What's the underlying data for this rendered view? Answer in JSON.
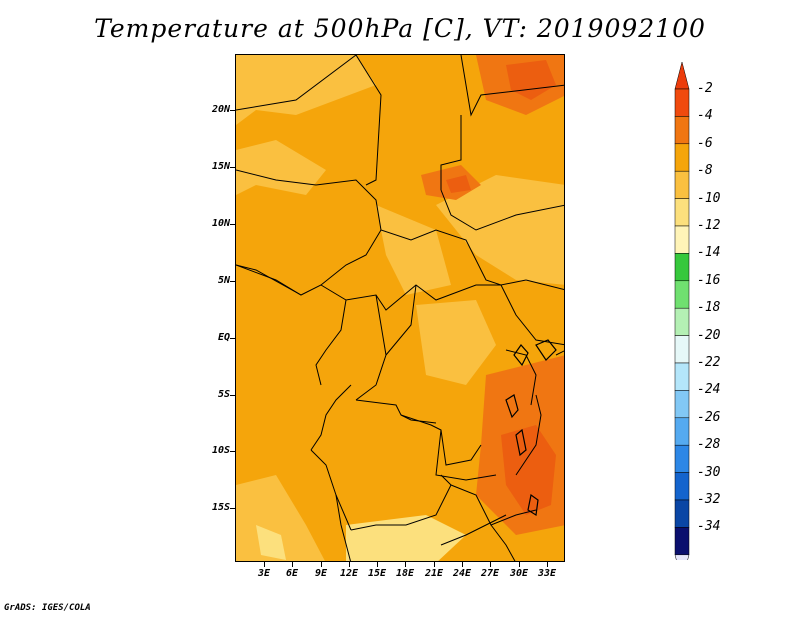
{
  "title": "Temperature at 500hPa [C], VT: 2019092100",
  "credit": "GrADS: IGES/COLA",
  "map": {
    "variable": "Temperature",
    "level": "500hPa",
    "units": "C",
    "valid_time": "2019092100",
    "lat_labels": [
      "20N",
      "15N",
      "10N",
      "5N",
      "EQ",
      "5S",
      "10S",
      "15S"
    ],
    "lon_labels": [
      "3E",
      "6E",
      "9E",
      "12E",
      "15E",
      "18E",
      "21E",
      "24E",
      "27E",
      "30E",
      "33E"
    ],
    "base_color": "#f5a50b",
    "region_colors": {
      "warm_light": "#ffc845",
      "warm_dark": "#ee7d0c",
      "hot": "#ec5e10"
    }
  },
  "colorbar": {
    "labels": [
      "-2",
      "-4",
      "-6",
      "-8",
      "-10",
      "-12",
      "-14",
      "-16",
      "-18",
      "-20",
      "-22",
      "-24",
      "-26",
      "-28",
      "-30",
      "-32",
      "-34"
    ],
    "colors": [
      "#f04a0e",
      "#f07612",
      "#f5a50b",
      "#fac040",
      "#fce07d",
      "#fff4b8",
      "#36c83c",
      "#70e070",
      "#b4f0b4",
      "#e6f8f8",
      "#b4e6fa",
      "#82c8f5",
      "#55aaf0",
      "#2d87e6",
      "#1464cd",
      "#0a46a5",
      "#0a0f6e"
    ],
    "over_color": "#ec3c0c",
    "under_color": "#e6e6fa"
  }
}
